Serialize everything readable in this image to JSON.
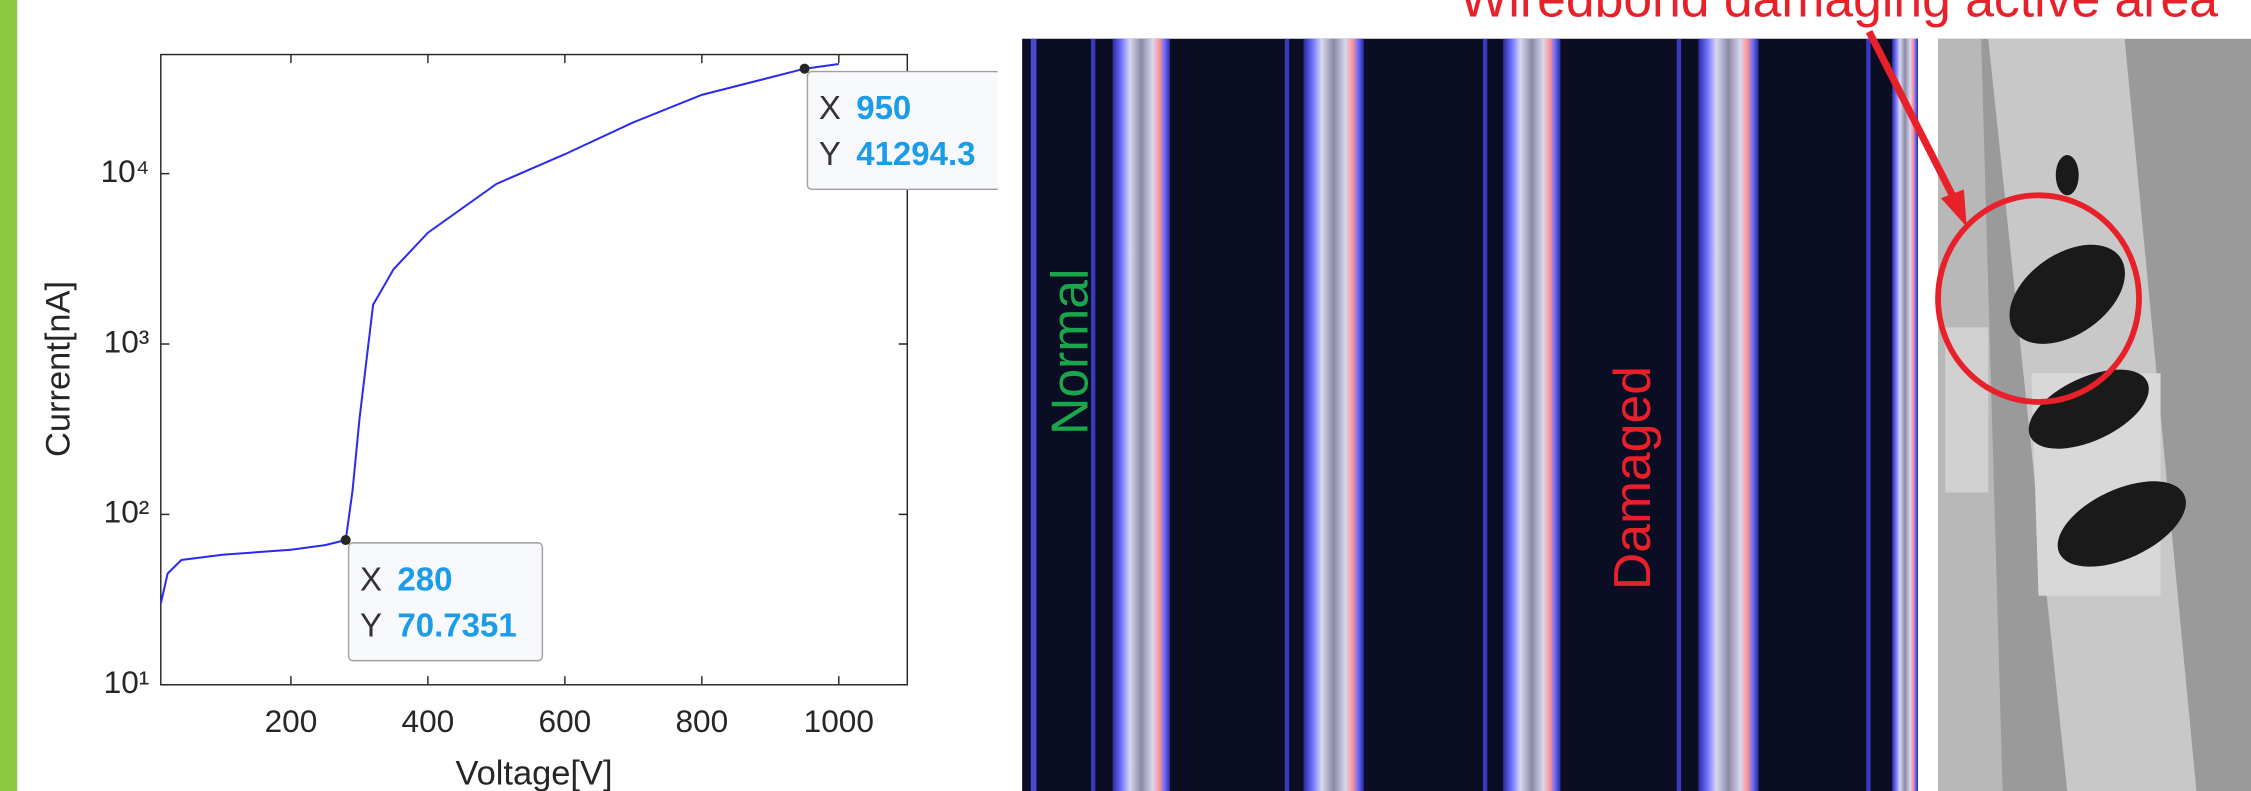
{
  "chart_data": {
    "type": "line",
    "xlabel": "Voltage[V]",
    "ylabel": "Current[nA]",
    "x": [
      10,
      20,
      40,
      100,
      200,
      250,
      280,
      290,
      300,
      320,
      350,
      400,
      500,
      600,
      700,
      800,
      950,
      1000
    ],
    "series": [
      {
        "color": "#2b2bef",
        "values": [
          30,
          45,
          54,
          58,
          62,
          66,
          70.7351,
          138,
          360,
          1700,
          2750,
          4500,
          8700,
          13000,
          20000,
          29000,
          41294.3,
          44000
        ]
      }
    ],
    "log_y": true,
    "xlim": [
      10,
      1100
    ],
    "ylim": [
      10,
      50000
    ],
    "xticks": [
      200,
      400,
      600,
      800,
      1000
    ],
    "yticks": [
      {
        "value": 10,
        "label": "10¹"
      },
      {
        "value": 100,
        "label": "10²"
      },
      {
        "value": 1000,
        "label": "10³"
      },
      {
        "value": 10000,
        "label": "10⁴"
      }
    ],
    "grid": false,
    "datatip_keys": [
      "X",
      "Y"
    ],
    "datatips": [
      {
        "x": 950,
        "y": 41294.3
      },
      {
        "x": 280,
        "y": 70.7351
      }
    ]
  },
  "annotations": {
    "normal": "Normal",
    "damaged": "Damaged",
    "wirebond": "Wiredbond damaging active area"
  }
}
